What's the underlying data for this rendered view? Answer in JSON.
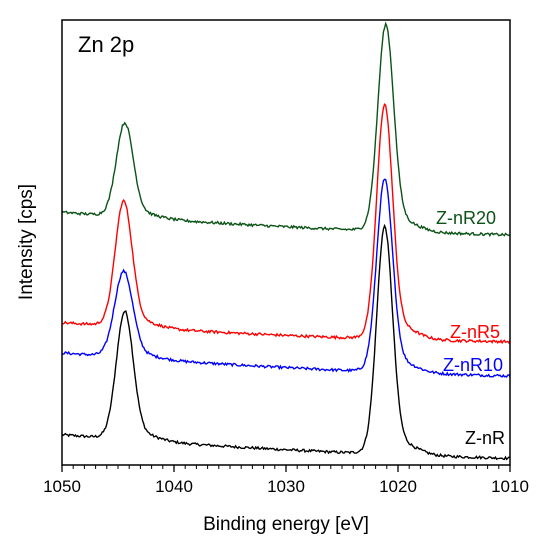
{
  "chart_data": {
    "type": "line",
    "title": "Zn 2p",
    "xlabel": "Binding energy [eV]",
    "ylabel": "Intensity [cps]",
    "xlim": [
      1050,
      1010
    ],
    "x_reversed": true,
    "xticks": [
      1050,
      1040,
      1030,
      1020,
      1010
    ],
    "ylim": [
      0,
      100
    ],
    "y_ticklabels_shown": false,
    "grid": false,
    "legend": "inline labels at right",
    "series": [
      {
        "name": "Z-nR",
        "color": "#000000",
        "baseline_start": 6.8,
        "baseline_end": 1.5,
        "peaks": [
          {
            "center": 1044.4,
            "height": 27.5,
            "width": 0.75
          },
          {
            "center": 1021.2,
            "height": 49.0,
            "width": 0.7
          }
        ]
      },
      {
        "name": "Z-nR10",
        "color": "#0000ff",
        "baseline_start": 25.2,
        "baseline_end": 20.0,
        "peaks": [
          {
            "center": 1044.5,
            "height": 18.5,
            "width": 0.8
          },
          {
            "center": 1021.2,
            "height": 41.5,
            "width": 0.7
          }
        ]
      },
      {
        "name": "Z-nR5",
        "color": "#ff0000",
        "baseline_start": 32.0,
        "baseline_end": 27.7,
        "peaks": [
          {
            "center": 1044.5,
            "height": 27.0,
            "width": 0.75
          },
          {
            "center": 1021.2,
            "height": 50.5,
            "width": 0.7
          }
        ]
      },
      {
        "name": "Z-nR20",
        "color": "#0b5316",
        "baseline_start": 56.8,
        "baseline_end": 51.7,
        "peaks": [
          {
            "center": 1044.4,
            "height": 20.2,
            "width": 0.75
          },
          {
            "center": 1021.1,
            "height": 44.5,
            "width": 0.7
          }
        ]
      }
    ]
  }
}
